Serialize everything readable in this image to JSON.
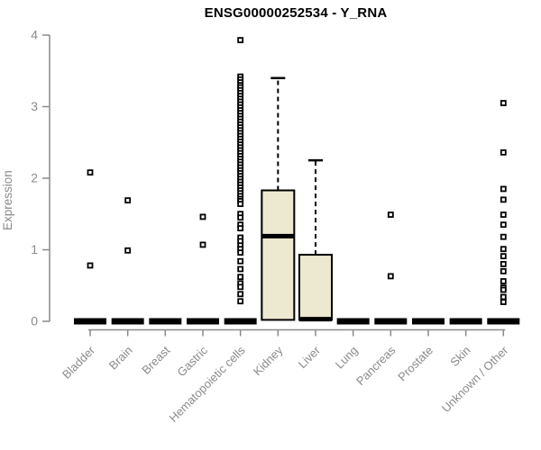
{
  "chart_data": {
    "type": "boxplot",
    "title": "ENSG00000252534 - Y_RNA",
    "ylabel": "Expression",
    "ylim": [
      0,
      4
    ],
    "yticks": [
      0,
      1,
      2,
      3,
      4
    ],
    "grid": false,
    "legend": "none",
    "colors": {
      "box_fill": "#EDE8D0",
      "box_stroke": "#000000",
      "median": "#000000",
      "whisker": "#000000",
      "outlier_stroke": "#000000",
      "outlier_fill": "#ffffff",
      "axis": "#8a8a8a",
      "tick_label": "#8a8a8a",
      "title": "#000000",
      "background": "#ffffff"
    },
    "categories": [
      "Bladder",
      "Brain",
      "Breast",
      "Gastric",
      "Hematopoietic cells",
      "Kidney",
      "Liver",
      "Lung",
      "Pancreas",
      "Prostate",
      "Skin",
      "Unknown / Other"
    ],
    "boxes": [
      {
        "category": "Bladder",
        "q1": 0,
        "median": 0,
        "q3": 0,
        "whisker_low": 0,
        "whisker_high": 0,
        "outliers": [
          2.08,
          0.78
        ]
      },
      {
        "category": "Brain",
        "q1": 0,
        "median": 0,
        "q3": 0,
        "whisker_low": 0,
        "whisker_high": 0,
        "outliers": [
          1.69,
          0.99
        ]
      },
      {
        "category": "Breast",
        "q1": 0,
        "median": 0,
        "q3": 0,
        "whisker_low": 0,
        "whisker_high": 0,
        "outliers": []
      },
      {
        "category": "Gastric",
        "q1": 0,
        "median": 0,
        "q3": 0,
        "whisker_low": 0,
        "whisker_high": 0,
        "outliers": [
          1.46,
          1.07
        ]
      },
      {
        "category": "Hematopoietic cells",
        "q1": 0,
        "median": 0,
        "q3": 0,
        "whisker_low": 0,
        "whisker_high": 0,
        "outliers": [
          3.93,
          3.42,
          3.38,
          3.34,
          3.3,
          3.27,
          3.23,
          3.19,
          3.15,
          3.11,
          3.07,
          3.03,
          2.99,
          2.95,
          2.91,
          2.87,
          2.83,
          2.79,
          2.75,
          2.71,
          2.67,
          2.63,
          2.59,
          2.55,
          2.51,
          2.47,
          2.43,
          2.39,
          2.35,
          2.31,
          2.27,
          2.23,
          2.19,
          2.15,
          2.11,
          2.07,
          2.03,
          1.99,
          1.95,
          1.91,
          1.87,
          1.83,
          1.79,
          1.75,
          1.71,
          1.68,
          1.64,
          1.5,
          1.45,
          1.35,
          1.3,
          1.17,
          1.12,
          1.06,
          1.01,
          0.96,
          0.84,
          0.73,
          0.62,
          0.53,
          0.48,
          0.38,
          0.28
        ]
      },
      {
        "category": "Kidney",
        "q1": 0.02,
        "median": 1.19,
        "q3": 1.83,
        "whisker_low": 0.02,
        "whisker_high": 3.4,
        "outliers": []
      },
      {
        "category": "Liver",
        "q1": 0.02,
        "median": 0.03,
        "q3": 0.93,
        "whisker_low": 0.02,
        "whisker_high": 2.25,
        "outliers": []
      },
      {
        "category": "Lung",
        "q1": 0,
        "median": 0,
        "q3": 0,
        "whisker_low": 0,
        "whisker_high": 0,
        "outliers": []
      },
      {
        "category": "Pancreas",
        "q1": 0,
        "median": 0,
        "q3": 0,
        "whisker_low": 0,
        "whisker_high": 0,
        "outliers": [
          1.49,
          0.63
        ]
      },
      {
        "category": "Prostate",
        "q1": 0,
        "median": 0,
        "q3": 0,
        "whisker_low": 0,
        "whisker_high": 0,
        "outliers": []
      },
      {
        "category": "Skin",
        "q1": 0,
        "median": 0,
        "q3": 0,
        "whisker_low": 0,
        "whisker_high": 0,
        "outliers": []
      },
      {
        "category": "Unknown / Other",
        "q1": 0,
        "median": 0,
        "q3": 0,
        "whisker_low": 0,
        "whisker_high": 0,
        "outliers": [
          3.05,
          2.36,
          1.85,
          1.7,
          1.49,
          1.35,
          1.18,
          1.01,
          0.91,
          0.8,
          0.7,
          0.56,
          0.47,
          0.44,
          0.34,
          0.27
        ]
      }
    ]
  }
}
